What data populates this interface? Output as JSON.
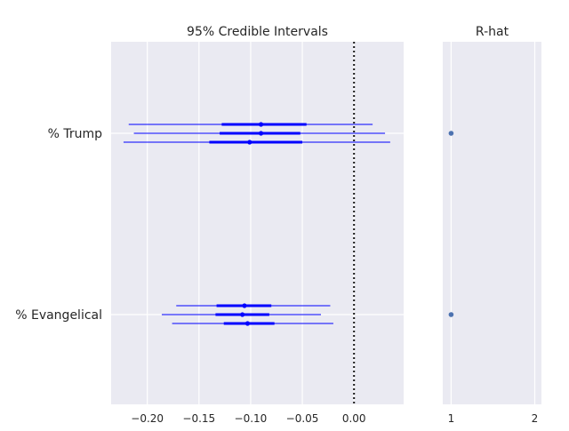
{
  "chart_data": [
    {
      "type": "forest",
      "title": "95% Credible Intervals",
      "xlim": [
        -0.235,
        0.048
      ],
      "xticks": [
        -0.2,
        -0.15,
        -0.1,
        -0.05,
        0.0
      ],
      "xtick_labels": [
        "−0.20",
        "−0.15",
        "−0.10",
        "−0.05",
        "0.00"
      ],
      "reference_line": 0.0,
      "grid": true,
      "groups": [
        {
          "label": "% Trump",
          "chains": [
            {
              "mean": -0.09,
              "hdi95": [
                -0.218,
                0.018
              ],
              "iqr": [
                -0.128,
                -0.046
              ]
            },
            {
              "mean": -0.09,
              "hdi95": [
                -0.213,
                0.03
              ],
              "iqr": [
                -0.13,
                -0.052
              ]
            },
            {
              "mean": -0.101,
              "hdi95": [
                -0.223,
                0.035
              ],
              "iqr": [
                -0.14,
                -0.05
              ]
            }
          ]
        },
        {
          "label": "% Evangelical",
          "chains": [
            {
              "mean": -0.106,
              "hdi95": [
                -0.172,
                -0.023
              ],
              "iqr": [
                -0.133,
                -0.08
              ]
            },
            {
              "mean": -0.108,
              "hdi95": [
                -0.186,
                -0.032
              ],
              "iqr": [
                -0.134,
                -0.082
              ]
            },
            {
              "mean": -0.103,
              "hdi95": [
                -0.176,
                -0.02
              ],
              "iqr": [
                -0.126,
                -0.077
              ]
            }
          ]
        }
      ],
      "colors": {
        "interval": "#0000ff",
        "reference": "#1a1a1a",
        "background": "#eaeaf2",
        "grid": "#ffffff"
      }
    },
    {
      "type": "scatter",
      "title": "R-hat",
      "xlim": [
        0.9,
        2.08
      ],
      "xticks": [
        1,
        2
      ],
      "xtick_labels": [
        "1",
        "2"
      ],
      "grid": true,
      "points": [
        {
          "label": "% Trump",
          "value": 1.0
        },
        {
          "label": "% Evangelical",
          "value": 1.0
        }
      ],
      "colors": {
        "point": "#4c72b0",
        "background": "#eaeaf2",
        "grid": "#ffffff"
      }
    }
  ]
}
